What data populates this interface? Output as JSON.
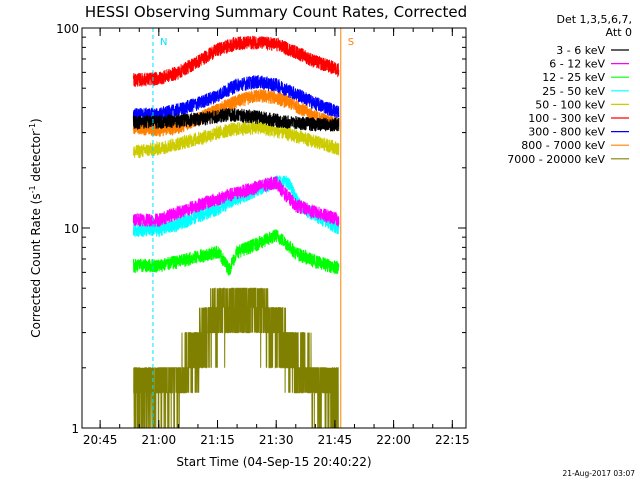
{
  "chart_data": {
    "type": "line",
    "title": "HESSI Observing Summary Count Rates, Corrected",
    "xlabel": "Start Time (04-Sep-15 20:40:22)",
    "ylabel": "Corrected Count Rate (s",
    "ylabel_sup1": "-1",
    "ylabel_mid": " detector",
    "ylabel_sup2": "-1",
    "ylabel_end": ")",
    "yscale": "log",
    "xlim": [
      "20:40:22",
      "22:18:30"
    ],
    "ylim": [
      1,
      100
    ],
    "xticks": [
      "20:45",
      "21:00",
      "21:15",
      "21:30",
      "21:45",
      "22:00",
      "22:15"
    ],
    "yticks": [
      "1",
      "10",
      "100"
    ],
    "legend_title": [
      "Det 1,3,5,6,7,",
      "Att 0"
    ],
    "legend_position": "right",
    "timestamp": "21-Aug-2017 03:07",
    "markers": [
      {
        "label": "N",
        "time": "20:58:30",
        "color": "#00e5ff"
      },
      {
        "label": "S",
        "time": "21:46:30",
        "color": "#ff8000"
      }
    ],
    "series": [
      {
        "name": "3 - 6 keV",
        "color": "#000000",
        "start": "20:53:30",
        "end": "21:46:00",
        "times": [
          "20:53:30",
          "21:00",
          "21:10",
          "21:18",
          "21:25",
          "21:32",
          "21:40",
          "21:46"
        ],
        "values": [
          34,
          34,
          35,
          37,
          36,
          34,
          33,
          33
        ]
      },
      {
        "name": "6 - 12 keV",
        "color": "#ff00ff",
        "start": "20:53:30",
        "end": "21:46:00",
        "times": [
          "20:53:30",
          "21:00",
          "21:05",
          "21:10",
          "21:15",
          "21:20",
          "21:25",
          "21:30",
          "21:32",
          "21:35",
          "21:40",
          "21:46"
        ],
        "values": [
          11,
          11,
          12,
          13,
          14,
          15,
          16,
          17,
          15,
          13,
          12,
          11
        ]
      },
      {
        "name": "12 - 25 keV",
        "color": "#00ff00",
        "start": "20:53:30",
        "end": "21:46:00",
        "times": [
          "20:53:30",
          "21:00",
          "21:05",
          "21:10",
          "21:15",
          "21:18",
          "21:20",
          "21:25",
          "21:30",
          "21:32",
          "21:35",
          "21:40",
          "21:46"
        ],
        "values": [
          6.5,
          6.5,
          6.8,
          7.2,
          7.6,
          6.2,
          7.6,
          8.3,
          9.2,
          8.6,
          7.5,
          6.8,
          6.3
        ]
      },
      {
        "name": "25 - 50 keV",
        "color": "#00ffff",
        "start": "20:53:30",
        "end": "21:46:00",
        "times": [
          "20:53:30",
          "21:00",
          "21:05",
          "21:10",
          "21:15",
          "21:20",
          "21:25",
          "21:30",
          "21:33",
          "21:36",
          "21:40",
          "21:46"
        ],
        "values": [
          9.8,
          9.8,
          10.5,
          11.5,
          12.5,
          14,
          15.5,
          17,
          17,
          13,
          11.5,
          10
        ]
      },
      {
        "name": "50 - 100 keV",
        "color": "#cccc00",
        "start": "20:53:30",
        "end": "21:46:00",
        "times": [
          "20:53:30",
          "21:00",
          "21:10",
          "21:18",
          "21:25",
          "21:32",
          "21:40",
          "21:46"
        ],
        "values": [
          24,
          25,
          28,
          31,
          32,
          30,
          27,
          25
        ]
      },
      {
        "name": "100 - 300 keV",
        "color": "#ff0000",
        "start": "20:53:30",
        "end": "21:46:00",
        "times": [
          "20:53:30",
          "21:00",
          "21:05",
          "21:10",
          "21:15",
          "21:20",
          "21:25",
          "21:30",
          "21:35",
          "21:40",
          "21:46"
        ],
        "values": [
          55,
          56,
          60,
          68,
          78,
          84,
          85,
          83,
          76,
          68,
          62
        ]
      },
      {
        "name": "300 - 800 keV",
        "color": "#0000ff",
        "start": "20:53:30",
        "end": "21:46:00",
        "times": [
          "20:53:30",
          "21:00",
          "21:05",
          "21:10",
          "21:15",
          "21:20",
          "21:25",
          "21:30",
          "21:35",
          "21:40",
          "21:46"
        ],
        "values": [
          37,
          37,
          39,
          42,
          46,
          52,
          54,
          52,
          47,
          42,
          38
        ]
      },
      {
        "name": "800 - 7000 keV",
        "color": "#ff8000",
        "start": "20:53:30",
        "end": "21:46:00",
        "times": [
          "20:53:30",
          "21:00",
          "21:05",
          "21:10",
          "21:15",
          "21:20",
          "21:25",
          "21:30",
          "21:35",
          "21:40",
          "21:46"
        ],
        "values": [
          32,
          31,
          32,
          35,
          39,
          43,
          46,
          45,
          41,
          36,
          33
        ]
      },
      {
        "name": "7000 - 20000 keV",
        "color": "#808000",
        "start": "20:53:30",
        "end": "21:46:00",
        "times": [
          "20:53:30",
          "21:00",
          "21:05",
          "21:10",
          "21:13",
          "21:18",
          "21:22",
          "21:26",
          "21:30",
          "21:35",
          "21:40",
          "21:46"
        ],
        "values": [
          1.5,
          1.6,
          1.8,
          2.5,
          3.2,
          4.0,
          4.2,
          3.8,
          3.0,
          2.2,
          1.7,
          1.5
        ]
      }
    ]
  }
}
